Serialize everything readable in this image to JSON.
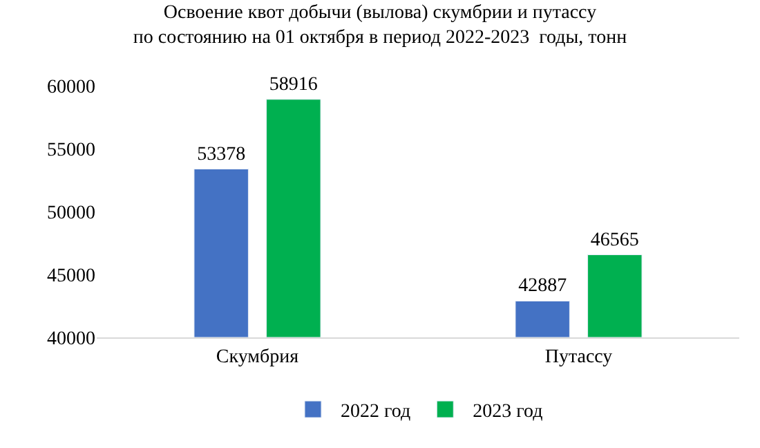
{
  "chart_data": {
    "type": "bar",
    "title": "Освоение квот добычи (вылова) скумбрии и путассу\nпо состоянию на 01 октября в период 2022-2023  годы, тонн",
    "categories": [
      "Скумбрия",
      "Путассу"
    ],
    "series": [
      {
        "name": "2022 год",
        "color": "#4472c4",
        "values": [
          53378,
          42887
        ]
      },
      {
        "name": "2023 год",
        "color": "#00b050",
        "values": [
          58916,
          46565
        ]
      }
    ],
    "ylim": [
      40000,
      60000
    ],
    "yticks": [
      40000,
      45000,
      50000,
      55000,
      60000
    ],
    "legend": "bottom",
    "data_labels": true
  }
}
